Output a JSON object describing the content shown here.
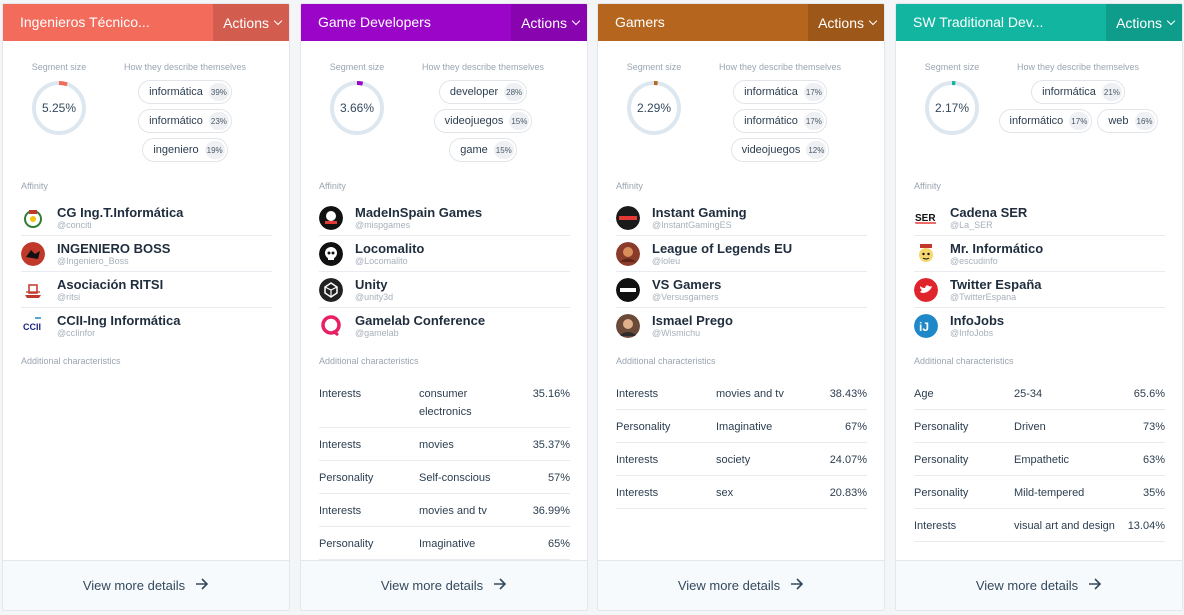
{
  "cards": [
    {
      "title": "Ingenieros Técnico...",
      "color": "#f26b5b",
      "actions_label": "Actions",
      "segment_label": "Segment size",
      "segment_size": "5.25%",
      "segment_fraction": 0.0525,
      "how_label": "How they describe themselves",
      "tags": [
        [
          {
            "word": "informática",
            "pct": "39%"
          }
        ],
        [
          {
            "word": "informático",
            "pct": "23%"
          }
        ],
        [
          {
            "word": "ingeniero",
            "pct": "19%"
          }
        ]
      ],
      "affinity_label": "Affinity",
      "affinity": [
        {
          "name": "CG Ing.T.Informática",
          "handle": "@conciti",
          "logo": "crest-logo",
          "logo_color": "#ffffff",
          "logo_text": ""
        },
        {
          "name": "INGENIERO BOSS",
          "handle": "@Ingeniero_Boss",
          "logo": "boss-logo",
          "logo_color": "#c0392b",
          "logo_text": ""
        },
        {
          "name": "Asociación RITSI",
          "handle": "@ritsi",
          "logo": "ritsi-logo",
          "logo_color": "#ffffff",
          "logo_text": ""
        },
        {
          "name": "CCII-Ing Informática",
          "handle": "@ccIinfor",
          "logo": "ccii-logo",
          "logo_color": "#ffffff",
          "logo_text": "CCII"
        }
      ],
      "chars_label": "Additional characteristics",
      "chars": [],
      "footer_label": "View more details"
    },
    {
      "title": "Game Developers",
      "color": "#9b05c8",
      "actions_label": "Actions",
      "segment_label": "Segment size",
      "segment_size": "3.66%",
      "segment_fraction": 0.0366,
      "how_label": "How they describe themselves",
      "tags": [
        [
          {
            "word": "developer",
            "pct": "28%"
          }
        ],
        [
          {
            "word": "videojuegos",
            "pct": "15%"
          }
        ],
        [
          {
            "word": "game",
            "pct": "15%"
          }
        ]
      ],
      "affinity_label": "Affinity",
      "affinity": [
        {
          "name": "MadeInSpain Games",
          "handle": "@mispgames",
          "logo": "mis-logo",
          "logo_color": "#111111",
          "logo_text": ""
        },
        {
          "name": "Locomalito",
          "handle": "@Locomalito",
          "logo": "skull-logo",
          "logo_color": "#111111",
          "logo_text": ""
        },
        {
          "name": "Unity",
          "handle": "@unity3d",
          "logo": "unity-logo",
          "logo_color": "#222222",
          "logo_text": ""
        },
        {
          "name": "Gamelab Conference",
          "handle": "@gamelab",
          "logo": "gamelab-logo",
          "logo_color": "#ffffff",
          "logo_text": ""
        }
      ],
      "chars_label": "Additional characteristics",
      "chars": [
        {
          "k": "Interests",
          "v": "consumer electronics",
          "p": "35.16%"
        },
        {
          "k": "Interests",
          "v": "movies",
          "p": "35.37%"
        },
        {
          "k": "Personality",
          "v": "Self-conscious",
          "p": "57%"
        },
        {
          "k": "Interests",
          "v": "movies and tv",
          "p": "36.99%"
        },
        {
          "k": "Personality",
          "v": "Imaginative",
          "p": "65%"
        }
      ],
      "footer_label": "View more details"
    },
    {
      "title": "Gamers",
      "color": "#b5651d",
      "actions_label": "Actions",
      "segment_label": "Segment size",
      "segment_size": "2.29%",
      "segment_fraction": 0.0229,
      "how_label": "How they describe themselves",
      "tags": [
        [
          {
            "word": "informática",
            "pct": "17%"
          }
        ],
        [
          {
            "word": "informático",
            "pct": "17%"
          }
        ],
        [
          {
            "word": "videojuegos",
            "pct": "12%"
          }
        ]
      ],
      "affinity_label": "Affinity",
      "affinity": [
        {
          "name": "Instant Gaming",
          "handle": "@InstantGamingES",
          "logo": "instant-gaming-logo",
          "logo_color": "#1a1a1a",
          "logo_text": ""
        },
        {
          "name": "League of Legends EU",
          "handle": "@loleu",
          "logo": "lol-logo",
          "logo_color": "#8a3b2a",
          "logo_text": ""
        },
        {
          "name": "VS Gamers",
          "handle": "@Versusgamers",
          "logo": "vs-logo",
          "logo_color": "#111111",
          "logo_text": ""
        },
        {
          "name": "Ismael Prego",
          "handle": "@Wismichu",
          "logo": "avatar-logo",
          "logo_color": "#6b4a3a",
          "logo_text": ""
        }
      ],
      "chars_label": "Additional characteristics",
      "chars": [
        {
          "k": "Interests",
          "v": "movies and tv",
          "p": "38.43%"
        },
        {
          "k": "Personality",
          "v": "Imaginative",
          "p": "67%"
        },
        {
          "k": "Interests",
          "v": "society",
          "p": "24.07%"
        },
        {
          "k": "Interests",
          "v": "sex",
          "p": "20.83%"
        }
      ],
      "footer_label": "View more details"
    },
    {
      "title": "SW Traditional Dev...",
      "color": "#12b5a0",
      "actions_label": "Actions",
      "segment_label": "Segment size",
      "segment_size": "2.17%",
      "segment_fraction": 0.0217,
      "how_label": "How they describe themselves",
      "tags": [
        [
          {
            "word": "informática",
            "pct": "21%"
          }
        ],
        [
          {
            "word": "informático",
            "pct": "17%"
          },
          {
            "word": "web",
            "pct": "16%"
          }
        ]
      ],
      "affinity_label": "Affinity",
      "affinity": [
        {
          "name": "Cadena SER",
          "handle": "@La_SER",
          "logo": "ser-logo",
          "logo_color": "#ffffff",
          "logo_text": "SER"
        },
        {
          "name": "Mr. Informático",
          "handle": "@escudinfo",
          "logo": "mr-informatico-logo",
          "logo_color": "#f5d76e",
          "logo_text": ""
        },
        {
          "name": "Twitter España",
          "handle": "@TwitterEspana",
          "logo": "twitter-logo",
          "logo_color": "#e0242b",
          "logo_text": ""
        },
        {
          "name": "InfoJobs",
          "handle": "@InfoJobs",
          "logo": "infojobs-logo",
          "logo_color": "#1e88c9",
          "logo_text": "iJ"
        }
      ],
      "chars_label": "Additional characteristics",
      "chars": [
        {
          "k": "Age",
          "v": "25-34",
          "p": "65.6%"
        },
        {
          "k": "Personality",
          "v": "Driven",
          "p": "73%"
        },
        {
          "k": "Personality",
          "v": "Empathetic",
          "p": "63%"
        },
        {
          "k": "Personality",
          "v": "Mild-tempered",
          "p": "35%"
        },
        {
          "k": "Interests",
          "v": "visual art and design",
          "p": "13.04%"
        }
      ],
      "footer_label": "View more details"
    }
  ]
}
